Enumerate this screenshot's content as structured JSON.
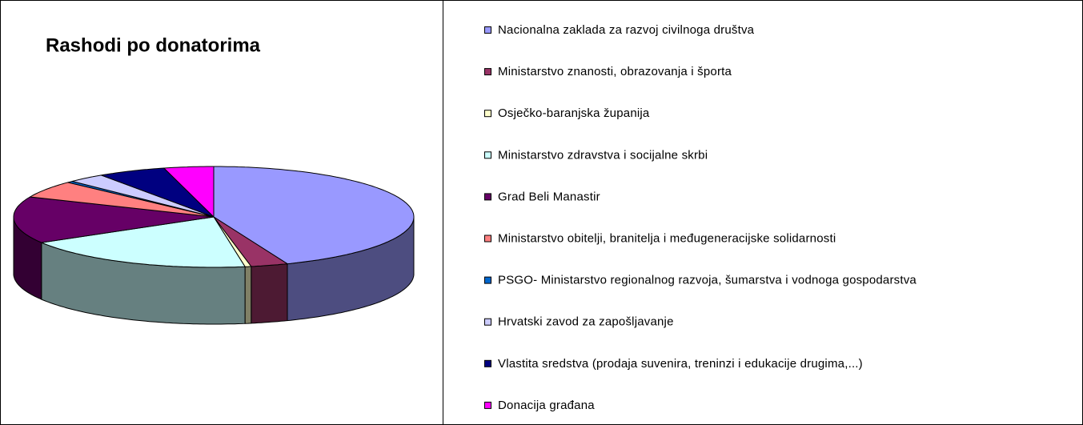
{
  "chart_data": {
    "type": "pie3d",
    "title": "Rashodi po donatorima",
    "categories": [
      "Nacionalna zaklada za razvoj civilnoga društva",
      "Ministarstvo znanosti, obrazovanja i športa",
      "Osječko-baranjska županija",
      "Ministarstvo zdravstva i socijalne skrbi",
      "Grad Beli Manastir",
      "Ministarstvo obitelji, branitelja i međugeneracijske solidarnosti",
      "PSGO- Ministarstvo regionalnog razvoja, šumarstva i vodnoga gospodarstva",
      "Hrvatski zavod za zapošljavanje",
      "Vlastita sredstva (prodaja suvenira, treninzi i edukacije drugima,...)",
      "Donacija građana"
    ],
    "values": [
      44,
      3,
      0.5,
      19,
      15,
      5.5,
      0.5,
      3,
      5.5,
      4
    ],
    "colors": [
      "#9999ff",
      "#993366",
      "#ffffcc",
      "#ccffff",
      "#660066",
      "#ff8080",
      "#0066cc",
      "#ccccff",
      "#000080",
      "#ff00ff"
    ],
    "legend": "right"
  }
}
